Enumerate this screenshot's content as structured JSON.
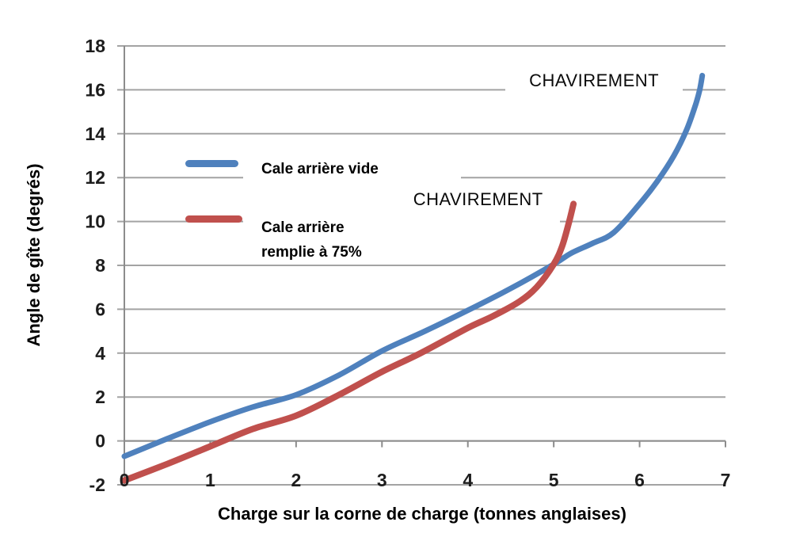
{
  "chart_data": {
    "type": "line",
    "title": "",
    "xlabel": "Charge sur la corne de charge (tonnes anglaises)",
    "ylabel": "Angle de gîte (degrés)",
    "xlim": [
      0,
      7
    ],
    "ylim": [
      -2,
      18
    ],
    "x_ticks": [
      "0",
      "1",
      "2",
      "3",
      "4",
      "5",
      "6",
      "7"
    ],
    "y_ticks": [
      "-2",
      "0",
      "2",
      "4",
      "6",
      "8",
      "10",
      "12",
      "14",
      "16",
      "18"
    ],
    "grid": "horizontal-only",
    "legend_position": "inside-upper-left",
    "colors": {
      "grid": "#a3a3a3",
      "axis": "#8c8c8c",
      "text": "#1d1d1d",
      "background": "#ffffff"
    },
    "series": [
      {
        "name": "Cale arrière vide",
        "legend_lines": [
          "Cale arrière vide"
        ],
        "color": "#4F81BD",
        "stroke_width": 7,
        "points": [
          [
            0,
            -0.7
          ],
          [
            0.5,
            0.1
          ],
          [
            1,
            0.87
          ],
          [
            1.5,
            1.55
          ],
          [
            2,
            2.1
          ],
          [
            2.5,
            3.0
          ],
          [
            3,
            4.1
          ],
          [
            3.5,
            5.0
          ],
          [
            4,
            5.95
          ],
          [
            4.5,
            6.95
          ],
          [
            5,
            8.05
          ],
          [
            5.2,
            8.55
          ],
          [
            5.45,
            9.0
          ],
          [
            5.7,
            9.5
          ],
          [
            6,
            10.8
          ],
          [
            6.2,
            11.8
          ],
          [
            6.4,
            13.0
          ],
          [
            6.55,
            14.2
          ],
          [
            6.65,
            15.3
          ],
          [
            6.7,
            16.0
          ],
          [
            6.73,
            16.65
          ]
        ]
      },
      {
        "name": "Cale arrière remplie à 75%",
        "legend_lines": [
          "Cale arrière",
          "remplie à 75%"
        ],
        "color": "#C0504D",
        "stroke_width": 8,
        "points": [
          [
            0,
            -1.8
          ],
          [
            0.5,
            -1.05
          ],
          [
            1,
            -0.25
          ],
          [
            1.5,
            0.55
          ],
          [
            2,
            1.15
          ],
          [
            2.5,
            2.1
          ],
          [
            3,
            3.15
          ],
          [
            3.45,
            4.0
          ],
          [
            4,
            5.15
          ],
          [
            4.3,
            5.7
          ],
          [
            4.6,
            6.35
          ],
          [
            4.8,
            7.0
          ],
          [
            5,
            8.05
          ],
          [
            5.1,
            8.9
          ],
          [
            5.18,
            10.0
          ],
          [
            5.23,
            10.8
          ]
        ]
      }
    ],
    "annotations": [
      {
        "text": "CHAVIREMENT",
        "x": 5.47,
        "y": 16.15,
        "series": "Cale arrière vide"
      },
      {
        "text": "CHAVIREMENT",
        "x": 4.12,
        "y": 10.75,
        "series": "Cale arrière remplie à 75%"
      }
    ]
  }
}
